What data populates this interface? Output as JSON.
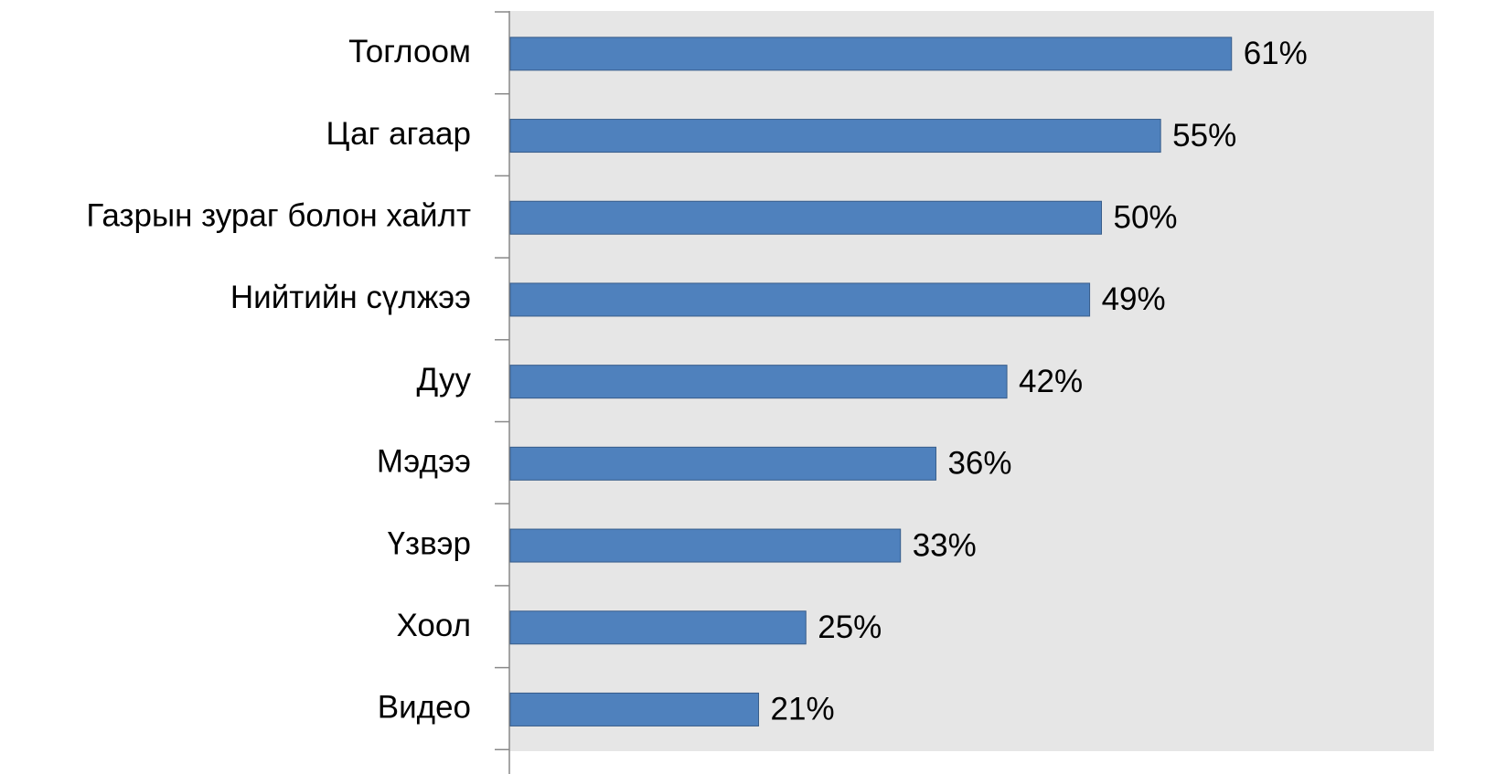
{
  "chart_data": {
    "type": "barh",
    "categories": [
      "Тоглоом",
      "Цаг агаар",
      "Газрын зураг болон хайлт",
      "Нийтийн сүлжээ",
      "Дуу",
      "Мэдээ",
      "Үзвэр",
      "Хоол",
      "Видео"
    ],
    "values": [
      61,
      55,
      50,
      49,
      42,
      36,
      33,
      25,
      21
    ],
    "value_labels": [
      "61%",
      "55%",
      "50%",
      "49%",
      "42%",
      "36%",
      "33%",
      "25%",
      "21%"
    ],
    "color": "#4f81bd"
  }
}
